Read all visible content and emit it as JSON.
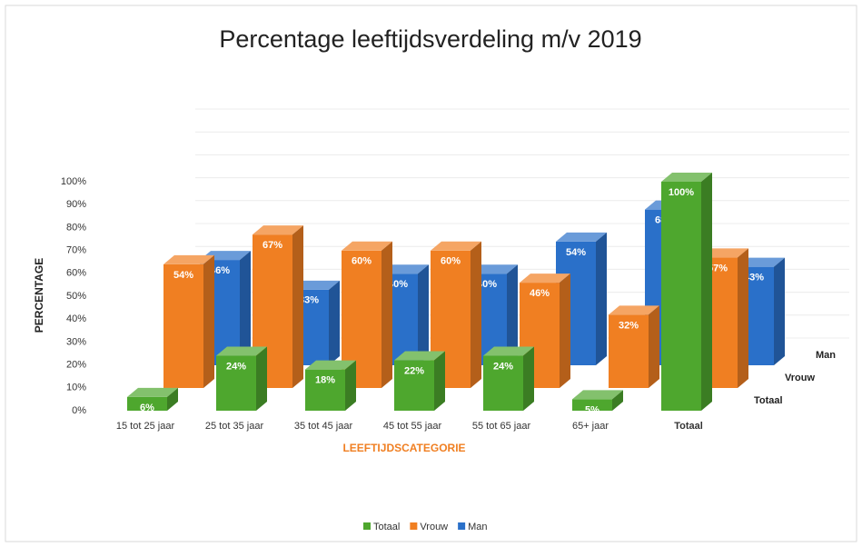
{
  "chart_data": {
    "type": "bar3d",
    "title": "Percentage leeftijdsverdeling m/v 2019",
    "xlabel": "LEEFTIJDSCATEGORIE",
    "ylabel": "PERCENTAGE",
    "categories": [
      "15 tot 25 jaar",
      "25 tot 35 jaar",
      "35 tot 45 jaar",
      "45 tot 55 jaar",
      "55 tot 65 jaar",
      "65+ jaar",
      "Totaal"
    ],
    "series": [
      {
        "name": "Totaal",
        "color": "#4ea72e",
        "values": [
          6,
          24,
          18,
          22,
          24,
          5,
          100
        ],
        "value_labels": [
          "6%",
          "24%",
          "18%",
          "22%",
          "24%",
          "5%",
          "100%"
        ]
      },
      {
        "name": "Vrouw",
        "color": "#f07f22",
        "values": [
          54,
          67,
          60,
          60,
          46,
          32,
          57
        ],
        "value_labels": [
          "54%",
          "67%",
          "60%",
          "60%",
          "46%",
          "32%",
          "57%"
        ]
      },
      {
        "name": "Man",
        "color": "#2a70c9",
        "values": [
          46,
          33,
          40,
          40,
          54,
          68,
          43
        ],
        "value_labels": [
          "46%",
          "33%",
          "40%",
          "40%",
          "54%",
          "68%",
          "43%"
        ]
      }
    ],
    "ylim": [
      0,
      100
    ],
    "yticks": [
      {
        "value": 0,
        "label": "0%"
      },
      {
        "value": 10,
        "label": "10%"
      },
      {
        "value": 20,
        "label": "20%"
      },
      {
        "value": 30,
        "label": "30%"
      },
      {
        "value": 40,
        "label": "40%"
      },
      {
        "value": 50,
        "label": "50%"
      },
      {
        "value": 60,
        "label": "60%"
      },
      {
        "value": 70,
        "label": "70%"
      },
      {
        "value": 80,
        "label": "80%"
      },
      {
        "value": 90,
        "label": "90%"
      },
      {
        "value": 100,
        "label": "100%"
      }
    ],
    "grid": true,
    "legend": "bottom"
  }
}
